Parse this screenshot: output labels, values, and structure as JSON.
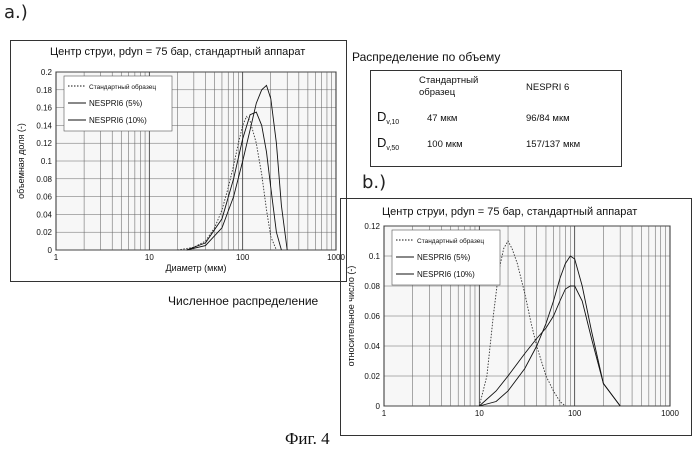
{
  "labels": {
    "a": "a.)",
    "b": "b.)",
    "volume_heading": "Распределение по объему",
    "numeric_heading": "Численное распределение",
    "figure_caption": "Фиг. 4"
  },
  "table": {
    "col1": "Стандартный образец",
    "col2": "NESPRI 6",
    "rows": [
      {
        "label": "D",
        "sub": "v,10",
        "c1": "47 мкм",
        "c2": "96/84 мкм"
      },
      {
        "label": "D",
        "sub": "v,50",
        "c1": "100 мкм",
        "c2": "157/137 мкм"
      }
    ]
  },
  "chart_data": [
    {
      "type": "line",
      "title": "Центр  струи, pdyn = 75 бар, стандартный аппарат",
      "xlabel": "Диаметр (мкм)",
      "ylabel": "объемная доля (-)",
      "x_scale": "log",
      "xlim": [
        1,
        1000
      ],
      "ylim": [
        0,
        0.2
      ],
      "x_ticks": [
        1,
        10,
        100,
        1000
      ],
      "x_tick_labels": [
        "1",
        "10",
        "100",
        "1000"
      ],
      "y_ticks": [
        0,
        0.02,
        0.04,
        0.06,
        0.08,
        0.1,
        0.12,
        0.14,
        0.16,
        0.18,
        0.2
      ],
      "y_tick_labels": [
        "0",
        "0.02",
        "0.04",
        "0.06",
        "0.08",
        "0.1",
        "0.12",
        "0.14",
        "0.16",
        "0.18",
        "0.2"
      ],
      "grid": true,
      "legend_position": "top-left",
      "series": [
        {
          "name": "Стандартный образец",
          "style": "dotted",
          "x": [
            20,
            30,
            40,
            50,
            60,
            70,
            80,
            90,
            100,
            110,
            120,
            140,
            160,
            180,
            200,
            230
          ],
          "y": [
            0,
            0.003,
            0.01,
            0.025,
            0.045,
            0.07,
            0.095,
            0.12,
            0.14,
            0.15,
            0.145,
            0.12,
            0.085,
            0.045,
            0.015,
            0
          ]
        },
        {
          "name": "NESPRI6  (5%)",
          "style": "solid",
          "x": [
            25,
            40,
            60,
            80,
            100,
            120,
            140,
            160,
            180,
            200,
            230,
            260,
            300
          ],
          "y": [
            0,
            0.005,
            0.025,
            0.06,
            0.1,
            0.135,
            0.165,
            0.18,
            0.185,
            0.17,
            0.12,
            0.05,
            0
          ]
        },
        {
          "name": "NESPRI6  (10%)",
          "style": "solid",
          "x": [
            25,
            40,
            60,
            80,
            100,
            120,
            140,
            160,
            180,
            200,
            230,
            260
          ],
          "y": [
            0,
            0.008,
            0.035,
            0.08,
            0.125,
            0.152,
            0.155,
            0.14,
            0.11,
            0.07,
            0.02,
            0
          ]
        }
      ]
    },
    {
      "type": "line",
      "title": "Центр  струи, pdyn = 75 бар, стандартный аппарат",
      "xlabel": "",
      "ylabel": "относительное число (-)",
      "x_scale": "log",
      "xlim": [
        1,
        1000
      ],
      "ylim": [
        0,
        0.12
      ],
      "x_ticks": [
        1,
        10,
        100,
        1000
      ],
      "x_tick_labels": [
        "1",
        "10",
        "100",
        "1000"
      ],
      "y_ticks": [
        0,
        0.02,
        0.04,
        0.06,
        0.08,
        0.1,
        0.12
      ],
      "y_tick_labels": [
        "0",
        "0.02",
        "0.04",
        "0.06",
        "0.08",
        "0.1",
        "0.12"
      ],
      "grid": true,
      "legend_position": "top-left",
      "series": [
        {
          "name": "Стандартный образец",
          "style": "dotted",
          "x": [
            10,
            12,
            14,
            16,
            18,
            20,
            22,
            25,
            30,
            35,
            40,
            50,
            60,
            70,
            80
          ],
          "y": [
            0,
            0.02,
            0.06,
            0.09,
            0.105,
            0.11,
            0.105,
            0.095,
            0.075,
            0.055,
            0.04,
            0.02,
            0.01,
            0.003,
            0
          ]
        },
        {
          "name": "NESPRI6  (5%)",
          "style": "solid",
          "x": [
            10,
            15,
            20,
            30,
            40,
            50,
            60,
            70,
            80,
            90,
            100,
            120,
            150,
            200,
            300
          ],
          "y": [
            0,
            0.003,
            0.01,
            0.025,
            0.04,
            0.055,
            0.07,
            0.085,
            0.095,
            0.1,
            0.098,
            0.08,
            0.05,
            0.015,
            0
          ]
        },
        {
          "name": "NESPRI6  (10%)",
          "style": "solid",
          "x": [
            10,
            15,
            20,
            30,
            40,
            50,
            60,
            70,
            80,
            90,
            100,
            120,
            150,
            200,
            300
          ],
          "y": [
            0,
            0.01,
            0.02,
            0.035,
            0.045,
            0.052,
            0.06,
            0.07,
            0.078,
            0.08,
            0.08,
            0.07,
            0.045,
            0.015,
            0
          ]
        }
      ]
    }
  ]
}
